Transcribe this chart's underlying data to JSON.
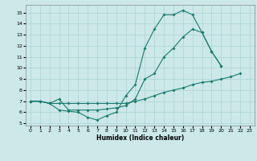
{
  "xlabel": "Humidex (Indice chaleur)",
  "xlim": [
    -0.5,
    23.5
  ],
  "ylim": [
    4.8,
    15.7
  ],
  "xticks": [
    0,
    1,
    2,
    3,
    4,
    5,
    6,
    7,
    8,
    9,
    10,
    11,
    12,
    13,
    14,
    15,
    16,
    17,
    18,
    19,
    20,
    21,
    22,
    23
  ],
  "yticks": [
    5,
    6,
    7,
    8,
    9,
    10,
    11,
    12,
    13,
    14,
    15
  ],
  "bg_color": "#cce8e8",
  "grid_color": "#aad4d4",
  "line_color": "#1a7a6e",
  "line1_x": [
    0,
    1,
    2,
    3,
    4,
    5,
    6,
    7,
    8,
    9,
    10,
    11,
    12,
    13,
    14,
    15,
    16,
    17,
    18,
    19,
    20
  ],
  "line1_y": [
    7.0,
    7.0,
    6.8,
    6.2,
    6.1,
    6.0,
    5.55,
    5.3,
    5.7,
    6.0,
    7.5,
    8.5,
    11.8,
    13.5,
    14.8,
    14.8,
    15.2,
    14.8,
    13.2,
    11.5,
    10.2
  ],
  "line2_x": [
    0,
    1,
    2,
    3,
    4,
    5,
    6,
    7,
    8,
    9,
    10,
    11,
    12,
    13,
    14,
    15,
    16,
    17,
    18,
    19,
    20
  ],
  "line2_y": [
    7.0,
    7.0,
    6.8,
    7.2,
    6.2,
    6.2,
    6.2,
    6.2,
    6.3,
    6.4,
    6.6,
    7.2,
    9.0,
    9.5,
    11.0,
    11.8,
    12.8,
    13.5,
    13.2,
    11.5,
    10.2
  ],
  "line3_x": [
    0,
    1,
    2,
    3,
    4,
    5,
    6,
    7,
    8,
    9,
    10,
    11,
    12,
    13,
    14,
    15,
    16,
    17,
    18,
    19,
    20,
    21,
    22
  ],
  "line3_y": [
    7.0,
    7.0,
    6.8,
    6.8,
    6.8,
    6.8,
    6.8,
    6.8,
    6.8,
    6.8,
    6.8,
    7.0,
    7.2,
    7.5,
    7.8,
    8.0,
    8.2,
    8.5,
    8.7,
    8.8,
    9.0,
    9.2,
    9.5
  ]
}
